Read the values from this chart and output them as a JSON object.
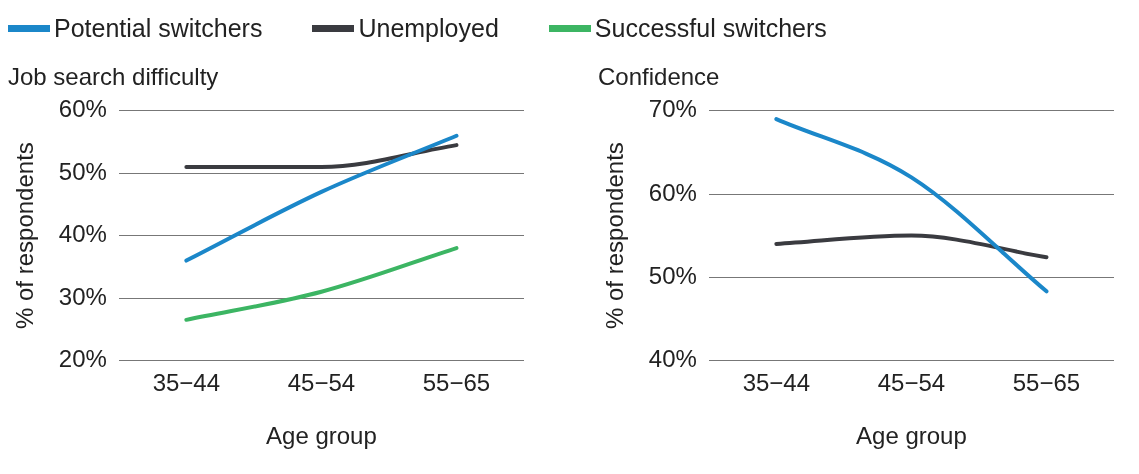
{
  "chart_data": [
    {
      "type": "line",
      "title": "Job search difficulty",
      "xlabel": "Age group",
      "ylabel": "% of respondents",
      "categories": [
        "35−44",
        "45−54",
        "55−65"
      ],
      "series": [
        {
          "name": "Potential switchers",
          "color": "#1b87c9",
          "values": [
            36,
            47,
            56
          ]
        },
        {
          "name": "Unemployed",
          "color": "#3a3b40",
          "values": [
            51,
            51,
            54.5
          ]
        },
        {
          "name": "Successful switchers",
          "color": "#3cb563",
          "values": [
            26.5,
            31,
            38
          ]
        }
      ],
      "ylim": [
        20,
        60
      ],
      "yticks": [
        {
          "value": 20,
          "label": "20%"
        },
        {
          "value": 30,
          "label": "30%"
        },
        {
          "value": 40,
          "label": "40%"
        },
        {
          "value": 50,
          "label": "50%"
        },
        {
          "value": 60,
          "label": "60%"
        }
      ],
      "grid": "y",
      "legend": "top",
      "marker": "none"
    },
    {
      "type": "line",
      "title": "Confidence",
      "xlabel": "Age group",
      "ylabel": "% of respondents",
      "categories": [
        "35−44",
        "45−54",
        "55−65"
      ],
      "series": [
        {
          "color": "#1b87c9",
          "values": [
            69,
            62,
            48.3
          ]
        },
        {
          "color": "#3a3b40",
          "values": [
            54,
            55,
            52.4
          ]
        }
      ],
      "ylim": [
        40,
        70
      ],
      "yticks": [
        {
          "value": 40,
          "label": "40%"
        },
        {
          "value": 50,
          "label": "50%"
        },
        {
          "value": 60,
          "label": "60%"
        },
        {
          "value": 70,
          "label": "70%"
        }
      ],
      "grid": "y",
      "legend": "top",
      "marker": "none"
    }
  ]
}
